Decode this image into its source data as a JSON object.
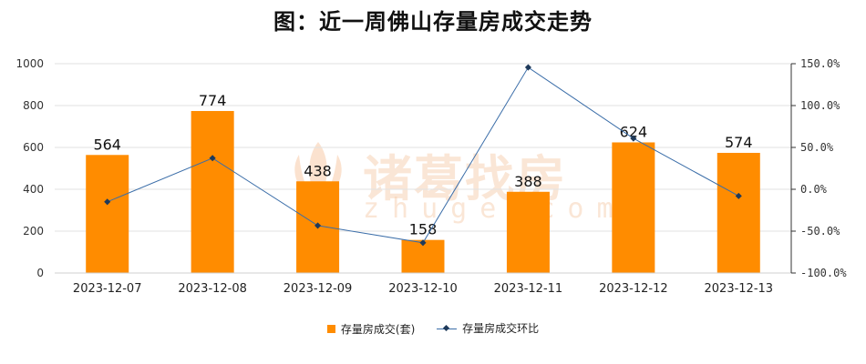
{
  "chart_data": {
    "type": "bar",
    "title": "图：近一周佛山存量房成交走势",
    "categories": [
      "2023-12-07",
      "2023-12-08",
      "2023-12-09",
      "2023-12-10",
      "2023-12-11",
      "2023-12-12",
      "2023-12-13"
    ],
    "series": [
      {
        "name": "存量房成交(套)",
        "type": "bar",
        "axis": "left",
        "color": "#ff8c00",
        "values": [
          564,
          774,
          438,
          158,
          388,
          624,
          574
        ]
      },
      {
        "name": "存量房成交环比",
        "type": "line",
        "axis": "right",
        "color": "#3a6da8",
        "values": [
          -15.0,
          37.2,
          -43.4,
          -63.9,
          145.6,
          60.8,
          -8.0
        ]
      }
    ],
    "left_axis": {
      "ylim": [
        0,
        1000
      ],
      "ticks": [
        "0",
        "200",
        "400",
        "600",
        "800",
        "1000"
      ],
      "tick_values": [
        0,
        200,
        400,
        600,
        800,
        1000
      ]
    },
    "right_axis": {
      "ylim": [
        -100,
        150
      ],
      "ticks": [
        "-100.0%",
        "-50.0%",
        "0.0%",
        "50.0%",
        "100.0%",
        "150.0%"
      ],
      "tick_values": [
        -100,
        -50,
        0,
        50,
        100,
        150
      ]
    },
    "grid": true,
    "legend": "bottom"
  },
  "watermark": {
    "text": "诸葛找房",
    "sub": "zhuge.com"
  }
}
